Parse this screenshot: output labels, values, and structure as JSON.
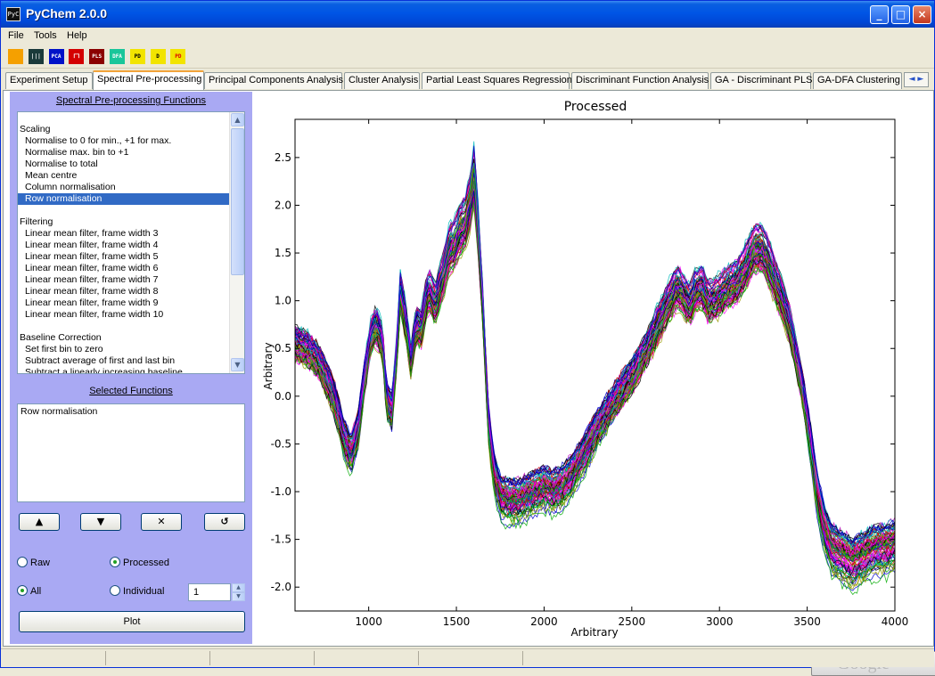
{
  "window": {
    "title": "PyChem 2.0.0",
    "icon_text": "PyC",
    "controls": [
      "_",
      "□",
      "×"
    ]
  },
  "menu": [
    "File",
    "Tools",
    "Help"
  ],
  "toolbar": [
    {
      "name": "flask-icon",
      "label": "",
      "bg": "#F5A000",
      "fg": "#fff"
    },
    {
      "name": "spectra-icon",
      "label": "|||",
      "bg": "#1a3a3a",
      "fg": "#fff"
    },
    {
      "name": "pca-icon",
      "label": "PCA",
      "bg": "#0012C8",
      "fg": "#fff"
    },
    {
      "name": "cluster-icon",
      "label": "ᒥᒣ",
      "bg": "#D40000",
      "fg": "#fff"
    },
    {
      "name": "pls-icon",
      "label": "PLS",
      "bg": "#8B0000",
      "fg": "#fff"
    },
    {
      "name": "dfa-icon",
      "label": "DFA",
      "bg": "#19C69A",
      "fg": "#fff"
    },
    {
      "name": "ga-pls-icon",
      "label": "PD",
      "bg": "#F2E400",
      "fg": "#000"
    },
    {
      "name": "ga-d-icon",
      "label": "D",
      "bg": "#F2E400",
      "fg": "#000"
    },
    {
      "name": "ga-dfa-icon",
      "label": "PD",
      "bg": "#F2E400",
      "fg": "#d00"
    }
  ],
  "tabs": [
    {
      "label": "Experiment Setup",
      "active": false
    },
    {
      "label": "Spectral Pre-processing",
      "active": true
    },
    {
      "label": "Principal Components Analysis",
      "active": false
    },
    {
      "label": "Cluster Analysis",
      "active": false
    },
    {
      "label": "Partial Least Squares Regression",
      "active": false
    },
    {
      "label": "Discriminant Function Analysis",
      "active": false
    },
    {
      "label": "GA - Discriminant PLS",
      "active": false
    },
    {
      "label": "GA-DFA Clustering",
      "active": false
    }
  ],
  "tab_scroll": "◄ ►",
  "panel": {
    "functions_title": "Spectral Pre-processing Functions",
    "functions": [
      {
        "text": "",
        "kind": "gap"
      },
      {
        "text": "Scaling",
        "kind": "header"
      },
      {
        "text": "Normalise to 0 for min., +1 for max.",
        "kind": "item"
      },
      {
        "text": "Normalise max. bin to +1",
        "kind": "item"
      },
      {
        "text": "Normalise to total",
        "kind": "item"
      },
      {
        "text": "Mean centre",
        "kind": "item"
      },
      {
        "text": "Column normalisation",
        "kind": "item"
      },
      {
        "text": "Row normalisation",
        "kind": "item",
        "selected": true
      },
      {
        "text": "",
        "kind": "gap"
      },
      {
        "text": "Filtering",
        "kind": "header"
      },
      {
        "text": "Linear mean filter, frame width 3",
        "kind": "item"
      },
      {
        "text": "Linear mean filter, frame width 4",
        "kind": "item"
      },
      {
        "text": "Linear mean filter, frame width 5",
        "kind": "item"
      },
      {
        "text": "Linear mean filter, frame width 6",
        "kind": "item"
      },
      {
        "text": "Linear mean filter, frame width 7",
        "kind": "item"
      },
      {
        "text": "Linear mean filter, frame width 8",
        "kind": "item"
      },
      {
        "text": "Linear mean filter, frame width 9",
        "kind": "item"
      },
      {
        "text": "Linear mean filter, frame width 10",
        "kind": "item"
      },
      {
        "text": "",
        "kind": "gap"
      },
      {
        "text": "Baseline Correction",
        "kind": "header"
      },
      {
        "text": "Set first bin to zero",
        "kind": "item"
      },
      {
        "text": "Subtract average of first and last bin",
        "kind": "item"
      },
      {
        "text": "Subtract a linearly increasing baseline",
        "kind": "item"
      }
    ],
    "selected_title": "Selected Functions",
    "selected_functions": [
      "Row normalisation"
    ],
    "buttons": {
      "up": "▲",
      "down": "▼",
      "delete": "✕",
      "undo": "↺"
    },
    "radio_raw": "Raw",
    "radio_processed": "Processed",
    "radio_all": "All",
    "radio_individual": "Individual",
    "mode": "processed",
    "selection": "all",
    "individual_value": "1",
    "plot_label": "Plot"
  },
  "chart_data": {
    "type": "line",
    "title": "Processed",
    "xlabel": "Arbitrary",
    "ylabel": "Arbitrary",
    "xlim": [
      580,
      4000
    ],
    "ylim": [
      -2.25,
      2.9
    ],
    "xticks": [
      1000,
      1500,
      2000,
      2500,
      3000,
      3500,
      4000
    ],
    "yticks": [
      -2.0,
      -1.5,
      -1.0,
      -0.5,
      0.0,
      0.5,
      1.0,
      1.5,
      2.0,
      2.5
    ],
    "n_series": 90,
    "colors": [
      "#0000CC",
      "#00AA00",
      "#CC0000",
      "#00BBBB",
      "#BB00BB",
      "#999900",
      "#000000",
      "#FF00FF"
    ],
    "mean_profile": {
      "x": [
        580,
        650,
        720,
        800,
        860,
        900,
        940,
        980,
        1010,
        1040,
        1080,
        1100,
        1130,
        1160,
        1180,
        1210,
        1240,
        1270,
        1300,
        1330,
        1350,
        1380,
        1400,
        1430,
        1460,
        1490,
        1520,
        1550,
        1580,
        1600,
        1620,
        1650,
        1680,
        1700,
        1720,
        1750,
        1800,
        1850,
        1900,
        1950,
        2000,
        2050,
        2100,
        2150,
        2200,
        2260,
        2300,
        2350,
        2400,
        2500,
        2600,
        2700,
        2760,
        2800,
        2830,
        2860,
        2900,
        2930,
        2960,
        3000,
        3050,
        3100,
        3150,
        3200,
        3240,
        3280,
        3320,
        3360,
        3400,
        3440,
        3480,
        3520,
        3560,
        3600,
        3640,
        3680,
        3720,
        3760,
        3800,
        3850,
        3900,
        3950,
        4000
      ],
      "y": [
        0.55,
        0.5,
        0.35,
        0.0,
        -0.45,
        -0.6,
        -0.35,
        0.25,
        0.6,
        0.75,
        0.55,
        0.0,
        -0.2,
        0.45,
        1.1,
        0.8,
        0.35,
        0.75,
        0.7,
        1.05,
        1.1,
        0.95,
        1.1,
        1.3,
        1.55,
        1.6,
        1.75,
        1.8,
        2.05,
        2.3,
        1.85,
        0.95,
        -0.2,
        -0.6,
        -0.85,
        -1.05,
        -1.1,
        -1.1,
        -1.05,
        -1.0,
        -0.95,
        -1.0,
        -0.95,
        -0.85,
        -0.7,
        -0.5,
        -0.35,
        -0.2,
        -0.05,
        0.2,
        0.55,
        0.95,
        1.15,
        1.05,
        0.95,
        1.1,
        1.15,
        1.0,
        1.0,
        1.05,
        1.15,
        1.2,
        1.35,
        1.55,
        1.55,
        1.4,
        1.2,
        1.0,
        0.75,
        0.4,
        0.0,
        -0.5,
        -1.05,
        -1.4,
        -1.6,
        -1.65,
        -1.7,
        -1.75,
        -1.7,
        -1.65,
        -1.6,
        -1.6,
        -1.55
      ]
    }
  }
}
